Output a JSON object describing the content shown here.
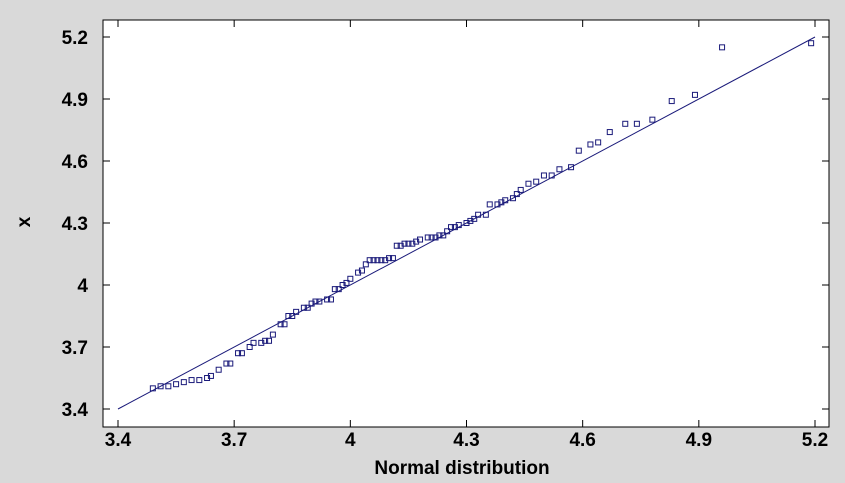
{
  "chart_data": {
    "type": "scatter",
    "xlabel": "Normal distribution",
    "ylabel": "x",
    "xlim": [
      3.4,
      5.2
    ],
    "ylim": [
      3.4,
      5.2
    ],
    "x_ticks": [
      3.4,
      3.7,
      4.0,
      4.3,
      4.6,
      4.9,
      5.2
    ],
    "x_tick_labels": [
      "3.4",
      "3.7",
      "4",
      "4.3",
      "4.6",
      "4.9",
      "5.2"
    ],
    "y_ticks": [
      3.4,
      3.7,
      4.0,
      4.3,
      4.6,
      4.9,
      5.2
    ],
    "y_tick_labels": [
      "3.4",
      "3.7",
      "4",
      "4.3",
      "4.6",
      "4.9",
      "5.2"
    ],
    "grid": false,
    "colors": {
      "marker": "#1a1a7a",
      "line": "#1a1a7a",
      "plot_background": "#ffffff",
      "page_background": "#d9d9d9"
    },
    "reference_line": {
      "x": [
        3.4,
        5.2
      ],
      "y": [
        3.4,
        5.2
      ]
    },
    "series": [
      {
        "points": [
          [
            3.49,
            3.5
          ],
          [
            3.51,
            3.51
          ],
          [
            3.53,
            3.51
          ],
          [
            3.55,
            3.52
          ],
          [
            3.57,
            3.53
          ],
          [
            3.59,
            3.54
          ],
          [
            3.61,
            3.54
          ],
          [
            3.63,
            3.55
          ],
          [
            3.64,
            3.56
          ],
          [
            3.66,
            3.59
          ],
          [
            3.68,
            3.62
          ],
          [
            3.69,
            3.62
          ],
          [
            3.71,
            3.67
          ],
          [
            3.72,
            3.67
          ],
          [
            3.74,
            3.7
          ],
          [
            3.75,
            3.72
          ],
          [
            3.77,
            3.72
          ],
          [
            3.78,
            3.73
          ],
          [
            3.79,
            3.73
          ],
          [
            3.8,
            3.76
          ],
          [
            3.82,
            3.81
          ],
          [
            3.83,
            3.81
          ],
          [
            3.84,
            3.85
          ],
          [
            3.85,
            3.85
          ],
          [
            3.86,
            3.87
          ],
          [
            3.88,
            3.89
          ],
          [
            3.89,
            3.89
          ],
          [
            3.9,
            3.91
          ],
          [
            3.91,
            3.92
          ],
          [
            3.92,
            3.92
          ],
          [
            3.94,
            3.93
          ],
          [
            3.95,
            3.93
          ],
          [
            3.96,
            3.98
          ],
          [
            3.97,
            3.98
          ],
          [
            3.98,
            4.0
          ],
          [
            3.99,
            4.01
          ],
          [
            4.0,
            4.03
          ],
          [
            4.02,
            4.06
          ],
          [
            4.03,
            4.07
          ],
          [
            4.04,
            4.1
          ],
          [
            4.05,
            4.12
          ],
          [
            4.06,
            4.12
          ],
          [
            4.07,
            4.12
          ],
          [
            4.08,
            4.12
          ],
          [
            4.09,
            4.12
          ],
          [
            4.1,
            4.13
          ],
          [
            4.11,
            4.13
          ],
          [
            4.12,
            4.19
          ],
          [
            4.13,
            4.19
          ],
          [
            4.14,
            4.2
          ],
          [
            4.15,
            4.2
          ],
          [
            4.16,
            4.2
          ],
          [
            4.17,
            4.21
          ],
          [
            4.18,
            4.22
          ],
          [
            4.2,
            4.23
          ],
          [
            4.21,
            4.23
          ],
          [
            4.22,
            4.23
          ],
          [
            4.23,
            4.24
          ],
          [
            4.24,
            4.24
          ],
          [
            4.25,
            4.26
          ],
          [
            4.26,
            4.28
          ],
          [
            4.27,
            4.28
          ],
          [
            4.28,
            4.29
          ],
          [
            4.3,
            4.3
          ],
          [
            4.31,
            4.31
          ],
          [
            4.32,
            4.32
          ],
          [
            4.33,
            4.34
          ],
          [
            4.35,
            4.34
          ],
          [
            4.36,
            4.39
          ],
          [
            4.38,
            4.39
          ],
          [
            4.39,
            4.4
          ],
          [
            4.4,
            4.41
          ],
          [
            4.42,
            4.42
          ],
          [
            4.43,
            4.44
          ],
          [
            4.44,
            4.46
          ],
          [
            4.46,
            4.49
          ],
          [
            4.48,
            4.5
          ],
          [
            4.5,
            4.53
          ],
          [
            4.52,
            4.53
          ],
          [
            4.54,
            4.56
          ],
          [
            4.57,
            4.57
          ],
          [
            4.59,
            4.65
          ],
          [
            4.62,
            4.68
          ],
          [
            4.64,
            4.69
          ],
          [
            4.67,
            4.74
          ],
          [
            4.71,
            4.78
          ],
          [
            4.74,
            4.78
          ],
          [
            4.78,
            4.8
          ],
          [
            4.83,
            4.89
          ],
          [
            4.89,
            4.92
          ],
          [
            4.96,
            5.15
          ],
          [
            5.19,
            5.17
          ]
        ]
      }
    ]
  }
}
